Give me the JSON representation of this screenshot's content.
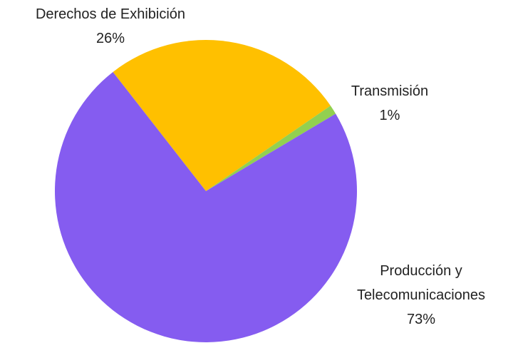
{
  "chart_data": {
    "type": "pie",
    "categories": [
      "Derechos de Exhibición",
      "Transmisión",
      "Producción y Telecomunicaciones"
    ],
    "values": [
      26,
      1,
      73
    ],
    "value_labels": [
      "26%",
      "1%",
      "73%"
    ],
    "colors": [
      "#ffc000",
      "#92d050",
      "#855cf0"
    ]
  }
}
